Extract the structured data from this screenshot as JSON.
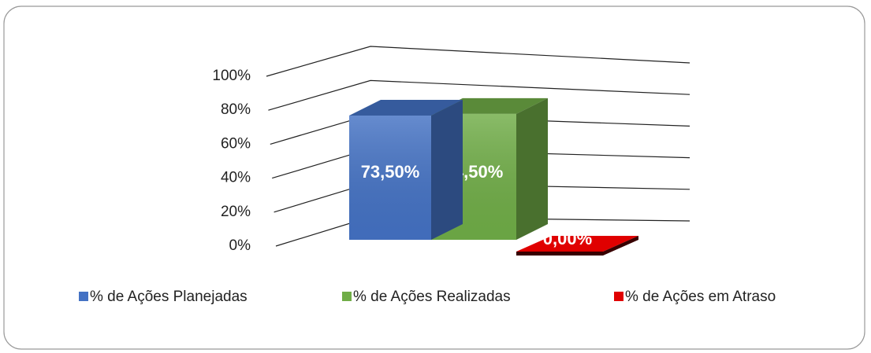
{
  "chart_data": {
    "type": "bar3d",
    "series": [
      {
        "name": "% de Ações Planejadas",
        "color": "#4472c4",
        "values": [
          73.5
        ],
        "value_labels": [
          "73,50%"
        ]
      },
      {
        "name": "% de Ações Realizadas",
        "color": "#70ad47",
        "values": [
          74.5
        ],
        "value_labels": [
          "74,50%"
        ]
      },
      {
        "name": "% de Ações em Atraso",
        "color": "#e00000",
        "values": [
          0
        ],
        "value_labels": [
          "0,00%"
        ]
      }
    ],
    "ylim": [
      0,
      100
    ],
    "yticks": [
      {
        "value": 0,
        "label": "0%"
      },
      {
        "value": 20,
        "label": "20%"
      },
      {
        "value": 40,
        "label": "40%"
      },
      {
        "value": 60,
        "label": "60%"
      },
      {
        "value": 80,
        "label": "80%"
      },
      {
        "value": 100,
        "label": "100%"
      }
    ],
    "grid": true,
    "legend": "bottom"
  }
}
